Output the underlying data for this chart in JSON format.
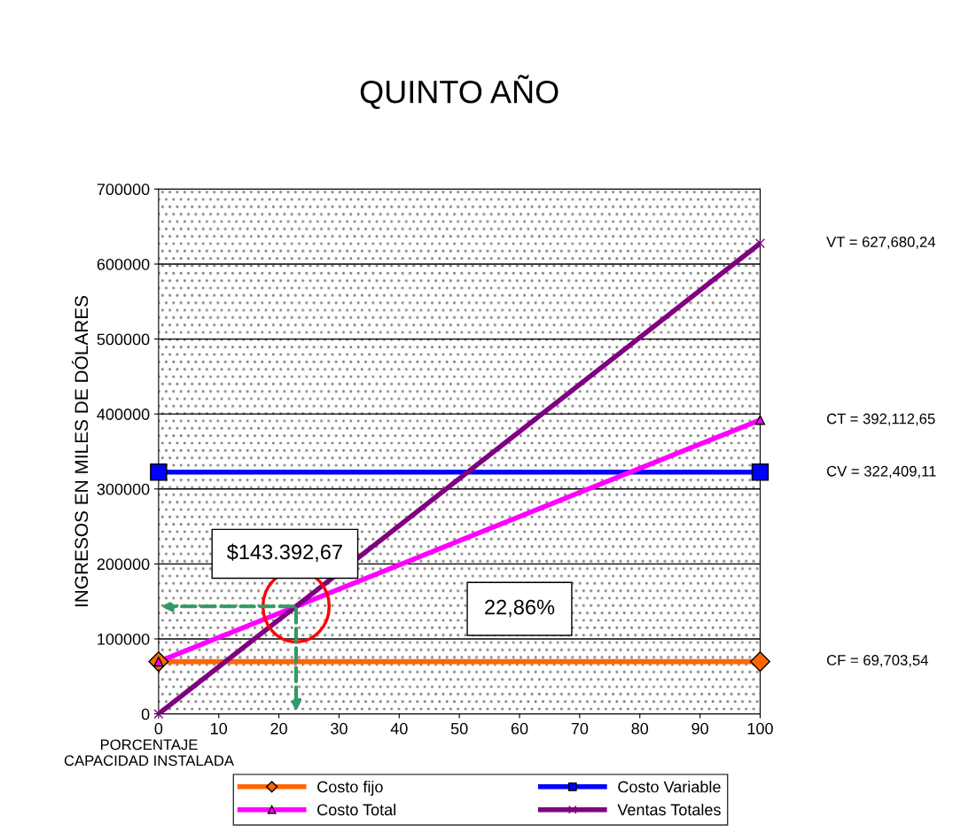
{
  "chart_data": {
    "type": "line",
    "title": "QUINTO AÑO",
    "xlabel": "PORCENTAJE\nCAPACIDAD INSTALADA",
    "ylabel": "INGRESOS EN MILES DE DÓLARES",
    "x": [
      0,
      100
    ],
    "series": [
      {
        "name": "Costo fijo",
        "color": "#ff6600",
        "values": [
          69700,
          69700
        ],
        "marker": "diamond"
      },
      {
        "name": "Costo Variable",
        "color": "#0000ff",
        "values": [
          322400,
          322400
        ],
        "marker": "square"
      },
      {
        "name": "Costo Total",
        "color": "#ff00ff",
        "values": [
          69700,
          392100
        ],
        "marker": "triangle"
      },
      {
        "name": "Ventas Totales",
        "color": "#800080",
        "values": [
          0,
          627700
        ],
        "marker": "cross"
      }
    ],
    "xlim": [
      0,
      100
    ],
    "xticks": [
      0,
      10,
      20,
      30,
      40,
      50,
      60,
      70,
      80,
      90,
      100
    ],
    "ylim": [
      0,
      700000
    ],
    "yticks": [
      0,
      100000,
      200000,
      300000,
      400000,
      500000,
      600000,
      700000
    ],
    "grid": "y",
    "legend": "bottom",
    "annotations": [
      "VT = 627,680,24",
      "CT = 392,112,65",
      "CV = 322,409,11",
      "CF = 69,703,54",
      "$143.392,67",
      "22,86%"
    ]
  }
}
